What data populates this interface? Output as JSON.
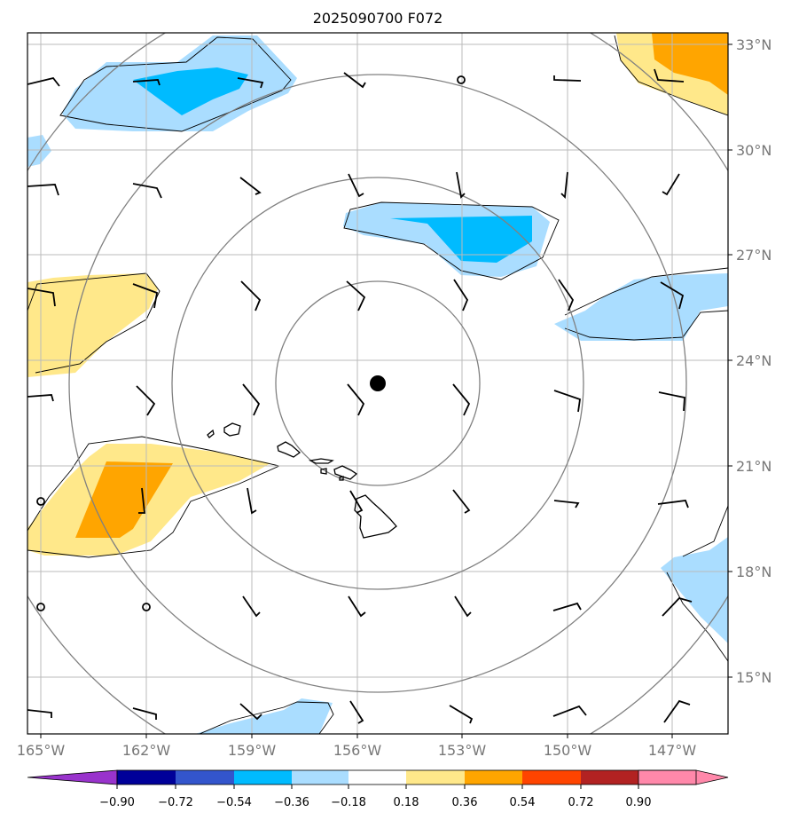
{
  "title": "2025090700 F072",
  "lon_labels": [
    "165°W",
    "162°W",
    "159°W",
    "156°W",
    "153°W",
    "150°W",
    "147°W"
  ],
  "lat_labels": [
    "33°N",
    "30°N",
    "27°N",
    "24°N",
    "21°N",
    "18°N",
    "15°N"
  ],
  "colorbar": {
    "labels": [
      "−0.90",
      "−0.72",
      "−0.54",
      "−0.36",
      "−0.18",
      "0.18",
      "0.36",
      "0.54",
      "0.72",
      "0.90"
    ],
    "colors": [
      "#9933cc",
      "#000099",
      "#3355cc",
      "#00bbff",
      "#aaddff",
      "#ffffff",
      "#ffe88a",
      "#ffa500",
      "#ff4400",
      "#b22222",
      "#ff88aa"
    ],
    "over_color": "#ff88aa",
    "under_color": "#9933cc"
  },
  "field_colors": {
    "light_blue": "#aaddff",
    "blue": "#00bbff",
    "light_yellow": "#ffe88a",
    "orange": "#ffa500"
  },
  "storm_center": "23.3°N 155.5°W"
}
